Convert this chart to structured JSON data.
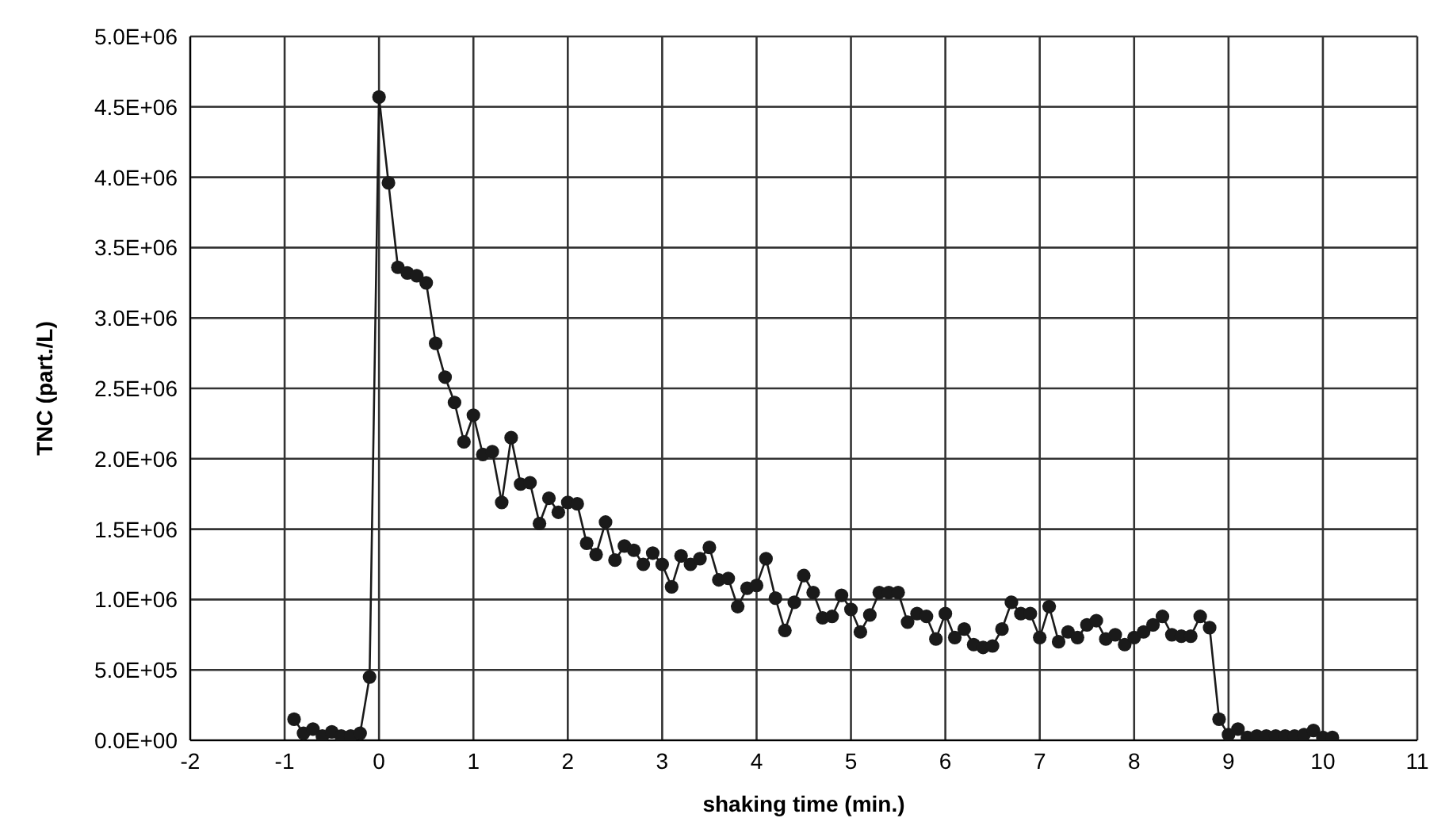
{
  "chart_data": {
    "type": "line",
    "xlabel": "shaking time (min.)",
    "ylabel": "TNC (part./L)",
    "x": [
      -0.9,
      -0.8,
      -0.7,
      -0.6,
      -0.5,
      -0.4,
      -0.3,
      -0.2,
      -0.1,
      0,
      0.1,
      0.2,
      0.3,
      0.4,
      0.5,
      0.6,
      0.7,
      0.8,
      0.9,
      1,
      1.1,
      1.2,
      1.3,
      1.4,
      1.5,
      1.6,
      1.7,
      1.8,
      1.9,
      2,
      2.1,
      2.2,
      2.3,
      2.4,
      2.5,
      2.6,
      2.7,
      2.8,
      2.9,
      3,
      3.1,
      3.2,
      3.3,
      3.4,
      3.5,
      3.6,
      3.7,
      3.8,
      3.9,
      4,
      4.1,
      4.2,
      4.3,
      4.4,
      4.5,
      4.6,
      4.7,
      4.8,
      4.9,
      5,
      5.1,
      5.2,
      5.3,
      5.4,
      5.5,
      5.6,
      5.7,
      5.8,
      5.9,
      6,
      6.1,
      6.2,
      6.3,
      6.4,
      6.5,
      6.6,
      6.7,
      6.8,
      6.9,
      7,
      7.1,
      7.2,
      7.3,
      7.4,
      7.5,
      7.6,
      7.7,
      7.8,
      7.9,
      8,
      8.1,
      8.2,
      8.3,
      8.4,
      8.5,
      8.6,
      8.7,
      8.8,
      8.9,
      9,
      9.1,
      9.2,
      9.3,
      9.4,
      9.5,
      9.6,
      9.7,
      9.8,
      9.9,
      10,
      10.1
    ],
    "series": [
      {
        "color": "#1a1a1a",
        "values": [
          150000,
          50000,
          80000,
          30000,
          60000,
          30000,
          30000,
          50000,
          450000,
          4570000,
          3960000,
          3360000,
          3320000,
          3300000,
          3250000,
          2820000,
          2580000,
          2400000,
          2120000,
          2310000,
          2030000,
          2050000,
          1690000,
          2150000,
          1820000,
          1830000,
          1540000,
          1720000,
          1620000,
          1690000,
          1680000,
          1400000,
          1320000,
          1550000,
          1280000,
          1380000,
          1350000,
          1250000,
          1330000,
          1250000,
          1090000,
          1310000,
          1250000,
          1290000,
          1370000,
          1140000,
          1150000,
          950000,
          1080000,
          1100000,
          1290000,
          1010000,
          780000,
          980000,
          1170000,
          1050000,
          870000,
          880000,
          1030000,
          930000,
          770000,
          890000,
          1050000,
          1050000,
          1050000,
          840000,
          900000,
          880000,
          720000,
          900000,
          730000,
          790000,
          680000,
          660000,
          670000,
          790000,
          980000,
          900000,
          900000,
          730000,
          950000,
          700000,
          770000,
          730000,
          820000,
          850000,
          720000,
          750000,
          680000,
          730000,
          770000,
          820000,
          880000,
          750000,
          740000,
          740000,
          880000,
          800000,
          150000,
          40000,
          80000,
          20000,
          30000,
          30000,
          30000,
          30000,
          30000,
          40000,
          70000,
          20000,
          20000
        ]
      }
    ],
    "xlim": [
      -2,
      11
    ],
    "xticks": [
      -2,
      -1,
      0,
      1,
      2,
      3,
      4,
      5,
      6,
      7,
      8,
      9,
      10,
      11
    ],
    "ylim": [
      0,
      5000000
    ],
    "yticks": [
      {
        "value": 0,
        "label": "0.0E+00"
      },
      {
        "value": 500000,
        "label": "5.0E+05"
      },
      {
        "value": 1000000,
        "label": "1.0E+06"
      },
      {
        "value": 1500000,
        "label": "1.5E+06"
      },
      {
        "value": 2000000,
        "label": "2.0E+06"
      },
      {
        "value": 2500000,
        "label": "2.5E+06"
      },
      {
        "value": 3000000,
        "label": "3.0E+06"
      },
      {
        "value": 3500000,
        "label": "3.5E+06"
      },
      {
        "value": 4000000,
        "label": "4.0E+06"
      },
      {
        "value": 4500000,
        "label": "4.5E+06"
      },
      {
        "value": 5000000,
        "label": "5.0E+06"
      }
    ],
    "grid": true,
    "legend": false,
    "marker": "circle",
    "line_style": "solid"
  }
}
